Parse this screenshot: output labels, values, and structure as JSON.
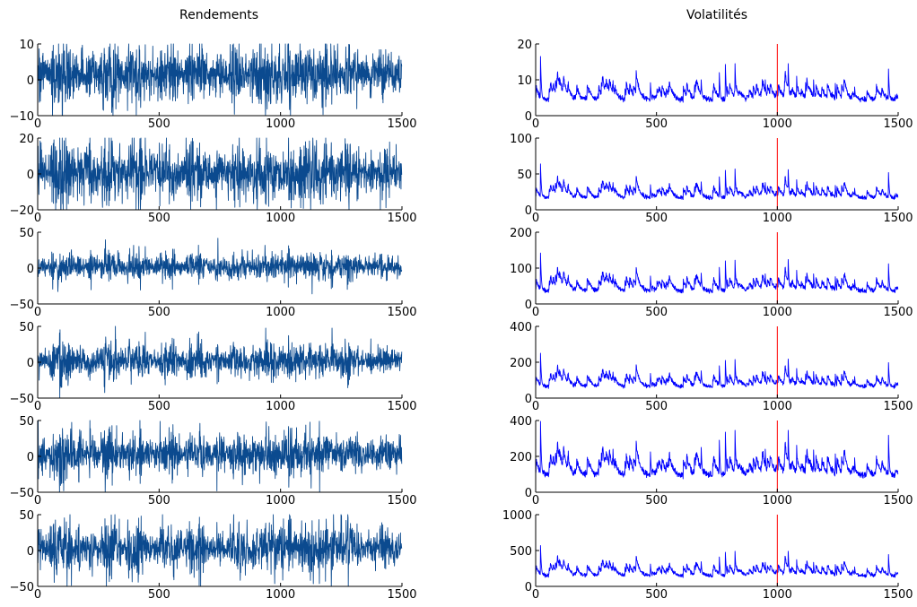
{
  "figure": {
    "left_title": "Rendements",
    "right_title": "Volatilités"
  },
  "colors": {
    "returns_line": "#0b4a8f",
    "volatility_line": "#0000ff",
    "marker_line": "#ff0000",
    "axis": "#000000"
  },
  "chart_data": [
    {
      "type": "line",
      "panel": "returns-1",
      "title": "Rendements",
      "xlabel": "",
      "ylabel": "",
      "xlim": [
        0,
        1500
      ],
      "ylim": [
        -10,
        10
      ],
      "xticks": [
        0,
        500,
        1000,
        1500
      ],
      "yticks": [
        -10,
        0,
        10
      ],
      "ytick_labels": [
        "−10",
        "0",
        "10"
      ],
      "n": 1500,
      "center": 1.5,
      "series_amplitude": 3,
      "grid": false,
      "legend": "none"
    },
    {
      "type": "line",
      "panel": "returns-2",
      "xlabel": "",
      "ylabel": "",
      "xlim": [
        0,
        1500
      ],
      "ylim": [
        -20,
        20
      ],
      "xticks": [
        0,
        500,
        1000,
        1500
      ],
      "yticks": [
        -20,
        0,
        20
      ],
      "ytick_labels": [
        "−20",
        "0",
        "20"
      ],
      "n": 1500,
      "center": 1,
      "series_amplitude": 6,
      "grid": false,
      "legend": "none"
    },
    {
      "type": "line",
      "panel": "returns-3",
      "xlabel": "",
      "ylabel": "",
      "xlim": [
        0,
        1500
      ],
      "ylim": [
        -50,
        50
      ],
      "xticks": [
        0,
        500,
        1000,
        1500
      ],
      "yticks": [
        -50,
        0,
        50
      ],
      "ytick_labels": [
        "−50",
        "0",
        "50"
      ],
      "n": 1500,
      "center": 2,
      "series_amplitude": 7,
      "grid": false,
      "legend": "none"
    },
    {
      "type": "line",
      "panel": "returns-4",
      "xlabel": "",
      "ylabel": "",
      "xlim": [
        0,
        1500
      ],
      "ylim": [
        -50,
        50
      ],
      "xticks": [
        0,
        500,
        1000,
        1500
      ],
      "yticks": [
        -50,
        0,
        50
      ],
      "ytick_labels": [
        "−50",
        "0",
        "50"
      ],
      "n": 1500,
      "center": 2,
      "series_amplitude": 9,
      "grid": false,
      "legend": "none"
    },
    {
      "type": "line",
      "panel": "returns-5",
      "xlabel": "",
      "ylabel": "",
      "xlim": [
        0,
        1500
      ],
      "ylim": [
        -50,
        50
      ],
      "xticks": [
        0,
        500,
        1000,
        1500
      ],
      "yticks": [
        -50,
        0,
        50
      ],
      "ytick_labels": [
        "−50",
        "0",
        "50"
      ],
      "n": 1500,
      "center": 3,
      "series_amplitude": 11,
      "grid": false,
      "legend": "none"
    },
    {
      "type": "line",
      "panel": "returns-6",
      "xlabel": "",
      "ylabel": "",
      "xlim": [
        0,
        1500
      ],
      "ylim": [
        -50,
        50
      ],
      "xticks": [
        0,
        500,
        1000,
        1500
      ],
      "yticks": [
        -50,
        0,
        50
      ],
      "ytick_labels": [
        "−50",
        "0",
        "50"
      ],
      "n": 1500,
      "center": 3,
      "series_amplitude": 13,
      "grid": false,
      "legend": "none"
    },
    {
      "type": "line",
      "panel": "volatility-1",
      "title": "Volatilités",
      "xlabel": "",
      "ylabel": "",
      "xlim": [
        0,
        1500
      ],
      "ylim": [
        0,
        20
      ],
      "xticks": [
        0,
        500,
        1000,
        1500
      ],
      "yticks": [
        0,
        10,
        20
      ],
      "ytick_labels": [
        "0",
        "10",
        "20"
      ],
      "n": 1500,
      "base_level": 3.5,
      "spike_scale": 1,
      "vertical_marker_x": 1000,
      "grid": false,
      "legend": "none",
      "peaks": [
        [
          20,
          16.5
        ],
        [
          135,
          9.5
        ],
        [
          320,
          9.8
        ],
        [
          395,
          7.5
        ],
        [
          475,
          9.2
        ],
        [
          685,
          10
        ],
        [
          760,
          12
        ],
        [
          785,
          14.3
        ],
        [
          825,
          14.5
        ],
        [
          950,
          10
        ],
        [
          1045,
          14.5
        ],
        [
          1080,
          11
        ],
        [
          1150,
          10
        ],
        [
          1240,
          9
        ],
        [
          1320,
          8
        ],
        [
          1460,
          13
        ]
      ]
    },
    {
      "type": "line",
      "panel": "volatility-2",
      "xlabel": "",
      "ylabel": "",
      "xlim": [
        0,
        1500
      ],
      "ylim": [
        0,
        100
      ],
      "xticks": [
        0,
        500,
        1000,
        1500
      ],
      "yticks": [
        0,
        50,
        100
      ],
      "ytick_labels": [
        "0",
        "50",
        "100"
      ],
      "n": 1500,
      "base_level": 13,
      "spike_scale": 3.8,
      "vertical_marker_x": 1000,
      "grid": false,
      "legend": "none",
      "peaks": [
        [
          20,
          64
        ],
        [
          135,
          36
        ],
        [
          320,
          38
        ],
        [
          395,
          28
        ],
        [
          475,
          35
        ],
        [
          685,
          39
        ],
        [
          760,
          46
        ],
        [
          785,
          55
        ],
        [
          825,
          57
        ],
        [
          950,
          38
        ],
        [
          1045,
          56
        ],
        [
          1080,
          42
        ],
        [
          1150,
          38
        ],
        [
          1240,
          34
        ],
        [
          1320,
          30
        ],
        [
          1460,
          52
        ]
      ]
    },
    {
      "type": "line",
      "panel": "volatility-3",
      "xlabel": "",
      "ylabel": "",
      "xlim": [
        0,
        1500
      ],
      "ylim": [
        0,
        200
      ],
      "xticks": [
        0,
        500,
        1000,
        1500
      ],
      "yticks": [
        0,
        100,
        200
      ],
      "ytick_labels": [
        "0",
        "100",
        "200"
      ],
      "n": 1500,
      "base_level": 28,
      "spike_scale": 8.5,
      "vertical_marker_x": 1000,
      "grid": false,
      "legend": "none",
      "peaks": [
        [
          20,
          142
        ],
        [
          135,
          80
        ],
        [
          320,
          82
        ],
        [
          395,
          63
        ],
        [
          475,
          78
        ],
        [
          685,
          86
        ],
        [
          760,
          102
        ],
        [
          785,
          120
        ],
        [
          825,
          122
        ],
        [
          950,
          84
        ],
        [
          1045,
          124
        ],
        [
          1080,
          94
        ],
        [
          1150,
          84
        ],
        [
          1240,
          76
        ],
        [
          1320,
          68
        ],
        [
          1460,
          112
        ]
      ]
    },
    {
      "type": "line",
      "panel": "volatility-4",
      "xlabel": "",
      "ylabel": "",
      "xlim": [
        0,
        1500
      ],
      "ylim": [
        0,
        400
      ],
      "xticks": [
        0,
        500,
        1000,
        1500
      ],
      "yticks": [
        0,
        200,
        400
      ],
      "ytick_labels": [
        "0",
        "200",
        "400"
      ],
      "n": 1500,
      "base_level": 50,
      "spike_scale": 15,
      "vertical_marker_x": 1000,
      "grid": false,
      "legend": "none",
      "peaks": [
        [
          20,
          250
        ],
        [
          135,
          140
        ],
        [
          320,
          145
        ],
        [
          395,
          110
        ],
        [
          475,
          138
        ],
        [
          685,
          152
        ],
        [
          760,
          180
        ],
        [
          785,
          210
        ],
        [
          825,
          215
        ],
        [
          950,
          148
        ],
        [
          1045,
          218
        ],
        [
          1080,
          165
        ],
        [
          1150,
          148
        ],
        [
          1240,
          134
        ],
        [
          1320,
          120
        ],
        [
          1460,
          198
        ]
      ]
    },
    {
      "type": "line",
      "panel": "volatility-5",
      "xlabel": "",
      "ylabel": "",
      "xlim": [
        0,
        1500
      ],
      "ylim": [
        0,
        400
      ],
      "xticks": [
        0,
        500,
        1000,
        1500
      ],
      "yticks": [
        0,
        200,
        400
      ],
      "ytick_labels": [
        "0",
        "200",
        "400"
      ],
      "n": 1500,
      "base_level": 72,
      "spike_scale": 24,
      "vertical_marker_x": 1000,
      "grid": false,
      "legend": "none",
      "peaks": [
        [
          20,
          395
        ],
        [
          135,
          230
        ],
        [
          320,
          240
        ],
        [
          395,
          180
        ],
        [
          475,
          225
        ],
        [
          685,
          250
        ],
        [
          760,
          290
        ],
        [
          785,
          335
        ],
        [
          825,
          345
        ],
        [
          950,
          240
        ],
        [
          1045,
          345
        ],
        [
          1080,
          262
        ],
        [
          1150,
          236
        ],
        [
          1240,
          214
        ],
        [
          1320,
          192
        ],
        [
          1460,
          318
        ]
      ]
    },
    {
      "type": "line",
      "panel": "volatility-6",
      "xlabel": "",
      "ylabel": "",
      "xlim": [
        0,
        1500
      ],
      "ylim": [
        0,
        1000
      ],
      "xticks": [
        0,
        500,
        1000,
        1500
      ],
      "yticks": [
        0,
        500,
        1000
      ],
      "ytick_labels": [
        "0",
        "500",
        "1000"
      ],
      "n": 1500,
      "base_level": 115,
      "spike_scale": 35,
      "vertical_marker_x": 1000,
      "grid": false,
      "legend": "none",
      "peaks": [
        [
          20,
          570
        ],
        [
          135,
          320
        ],
        [
          320,
          330
        ],
        [
          395,
          250
        ],
        [
          475,
          312
        ],
        [
          685,
          345
        ],
        [
          760,
          410
        ],
        [
          785,
          475
        ],
        [
          825,
          490
        ],
        [
          950,
          335
        ],
        [
          1045,
          490
        ],
        [
          1080,
          372
        ],
        [
          1150,
          335
        ],
        [
          1240,
          305
        ],
        [
          1320,
          272
        ],
        [
          1460,
          445
        ]
      ]
    }
  ]
}
